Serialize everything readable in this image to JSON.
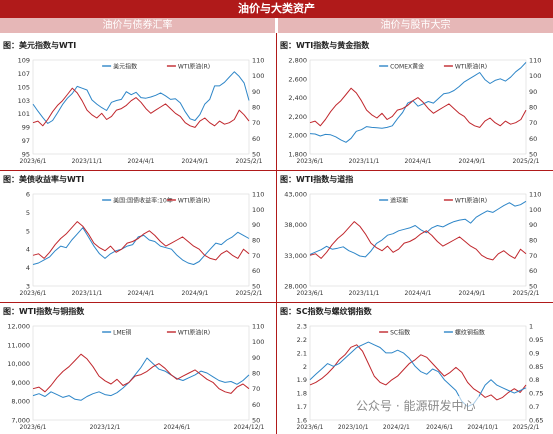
{
  "page": {
    "title": "油价与大类资产",
    "left_header": "油价与债券汇率",
    "right_header": "油价与股市大宗",
    "watermark": "公众号 · 能源研发中心"
  },
  "colors": {
    "blue": "#2e86c8",
    "red": "#c0272d",
    "header": "#b01a1a",
    "subheader": "#e6b7b7"
  },
  "chart_data": [
    {
      "type": "line",
      "title": "图：美元指数与WTI",
      "x_ticks": [
        "2023/6/1",
        "2023/11/1",
        "2024/4/1",
        "2024/9/1",
        "2025/2/1"
      ],
      "left_axis": {
        "ticks": [
          "95",
          "97",
          "99",
          "101",
          "103",
          "105",
          "107",
          "109"
        ],
        "range": [
          95,
          111
        ]
      },
      "right_axis": {
        "ticks": [
          "50",
          "60",
          "70",
          "80",
          "90",
          "100",
          "110"
        ],
        "range": [
          50,
          110
        ]
      },
      "series": [
        {
          "name": "美元指数",
          "axis": "left",
          "color": "#2e86c8",
          "values": [
            103.5,
            102.3,
            101.2,
            100.2,
            100.7,
            102.0,
            103.4,
            104.5,
            105.3,
            106.5,
            106.2,
            105.9,
            104.2,
            103.5,
            102.9,
            102.4,
            103.8,
            104.1,
            104.3,
            105.6,
            105.1,
            105.5,
            104.6,
            104.5,
            104.7,
            105.0,
            105.4,
            104.9,
            104.3,
            104.4,
            103.7,
            102.2,
            101.0,
            100.7,
            101.7,
            103.5,
            104.3,
            106.6,
            106.6,
            107.2,
            108.1,
            109.0,
            108.2,
            107.1,
            104.1
          ]
        },
        {
          "name": "WTI原油(R)",
          "axis": "right",
          "color": "#c0272d",
          "values": [
            70,
            71,
            68,
            72,
            77,
            81,
            84,
            88,
            92,
            89,
            84,
            78,
            75,
            73,
            76,
            72,
            74,
            78,
            79,
            81,
            84,
            86,
            83,
            79,
            76,
            78,
            80,
            82,
            79,
            76,
            74,
            70,
            68,
            67,
            71,
            73,
            70,
            68,
            71,
            69,
            70,
            72,
            78,
            75,
            71
          ]
        }
      ]
    },
    {
      "type": "line",
      "title": "图：WTI指数与黄金指数",
      "x_ticks": [
        "2023/6/1",
        "2023/11/1",
        "2024/4/1",
        "2024/9/1",
        "2025/2/1"
      ],
      "left_axis": {
        "ticks": [
          "1,800",
          "2,000",
          "2,200",
          "2,400",
          "2,600",
          "2,800"
        ],
        "range": [
          1700,
          2900
        ]
      },
      "right_axis": {
        "ticks": [
          "50",
          "60",
          "70",
          "80",
          "90",
          "100",
          "110"
        ],
        "range": [
          50,
          110
        ]
      },
      "series": [
        {
          "name": "COMEX黄金",
          "axis": "left",
          "color": "#2e86c8",
          "values": [
            1960,
            1955,
            1930,
            1950,
            1945,
            1920,
            1880,
            1850,
            1900,
            1990,
            2010,
            2050,
            2040,
            2035,
            2030,
            2040,
            2060,
            2150,
            2230,
            2350,
            2380,
            2310,
            2340,
            2370,
            2350,
            2410,
            2470,
            2480,
            2510,
            2560,
            2620,
            2660,
            2700,
            2740,
            2650,
            2600,
            2640,
            2660,
            2630,
            2680,
            2750,
            2800,
            2870
          ]
        },
        {
          "name": "WTI原油(R)",
          "axis": "right",
          "color": "#c0272d",
          "values": [
            70,
            71,
            68,
            72,
            77,
            81,
            84,
            88,
            92,
            89,
            84,
            78,
            75,
            73,
            76,
            72,
            74,
            78,
            79,
            81,
            84,
            86,
            83,
            79,
            76,
            78,
            80,
            82,
            79,
            76,
            74,
            70,
            68,
            67,
            71,
            73,
            70,
            68,
            71,
            69,
            70,
            72,
            78
          ]
        }
      ]
    },
    {
      "type": "line",
      "title": "图：美债收益率与WTI",
      "x_ticks": [
        "2023/6/1",
        "2023/11/1",
        "2024/4/1",
        "2024/9/1",
        "2025/2/1"
      ],
      "left_axis": {
        "ticks": [
          "3",
          "4",
          "4",
          "5",
          "5",
          "6"
        ],
        "range": [
          3,
          6
        ]
      },
      "right_axis": {
        "ticks": [
          "50",
          "60",
          "70",
          "80",
          "90",
          "100",
          "110"
        ],
        "range": [
          50,
          110
        ]
      },
      "series": [
        {
          "name": "美国:国债收益率:10年",
          "axis": "left",
          "color": "#2e86c8",
          "values": [
            3.7,
            3.75,
            3.85,
            3.95,
            4.15,
            4.3,
            4.25,
            4.5,
            4.7,
            4.9,
            4.6,
            4.3,
            4.05,
            3.9,
            4.05,
            4.15,
            4.2,
            4.3,
            4.35,
            4.6,
            4.65,
            4.5,
            4.45,
            4.3,
            4.25,
            4.2,
            4.0,
            3.85,
            3.75,
            3.7,
            3.8,
            4.0,
            4.2,
            4.4,
            4.35,
            4.5,
            4.6,
            4.75,
            4.65,
            4.55
          ]
        },
        {
          "name": "WTI原油(R)",
          "axis": "right",
          "color": "#c0272d",
          "values": [
            70,
            71,
            68,
            72,
            77,
            81,
            84,
            88,
            92,
            89,
            84,
            78,
            75,
            73,
            76,
            72,
            74,
            78,
            79,
            81,
            84,
            86,
            83,
            79,
            76,
            78,
            80,
            82,
            79,
            76,
            74,
            70,
            68,
            67,
            71,
            73,
            70,
            68,
            74,
            71
          ]
        }
      ]
    },
    {
      "type": "line",
      "title": "图：WTI指数与道指",
      "x_ticks": [
        "2023/6/1",
        "2023/11/1",
        "2024/4/1",
        "2024/9/1",
        "2025/2/1"
      ],
      "left_axis": {
        "ticks": [
          "28,000",
          "33,000",
          "38,000",
          "43,000"
        ],
        "range": [
          27000,
          46000
        ]
      },
      "right_axis": {
        "ticks": [
          "50",
          "60",
          "70",
          "80",
          "90",
          "100",
          "110"
        ],
        "range": [
          50,
          110
        ]
      },
      "series": [
        {
          "name": "道琼斯",
          "axis": "left",
          "color": "#2e86c8",
          "values": [
            33500,
            34000,
            34500,
            35200,
            34600,
            34800,
            35100,
            34300,
            33800,
            33200,
            33000,
            34200,
            35800,
            36500,
            37500,
            37800,
            38400,
            38700,
            39000,
            39500,
            38600,
            38000,
            39000,
            39500,
            39200,
            39800,
            40300,
            40600,
            40800,
            40000,
            41200,
            41900,
            42500,
            42200,
            42900,
            43600,
            44200,
            43500,
            43800,
            44500
          ]
        },
        {
          "name": "WTI原油(R)",
          "axis": "right",
          "color": "#c0272d",
          "values": [
            70,
            71,
            68,
            72,
            77,
            81,
            84,
            88,
            92,
            89,
            84,
            78,
            75,
            73,
            76,
            72,
            74,
            78,
            79,
            81,
            84,
            86,
            83,
            79,
            76,
            78,
            80,
            82,
            79,
            76,
            74,
            70,
            68,
            67,
            71,
            73,
            70,
            68,
            74,
            71
          ]
        }
      ]
    },
    {
      "type": "line",
      "title": "图：WTI指数与铜指数",
      "x_ticks": [
        "2023/6/1",
        "2023/12/1",
        "2024/6/1",
        "2024/12/1"
      ],
      "left_axis": {
        "ticks": [
          "7,000",
          "8,000",
          "9,000",
          "10,000",
          "11,000",
          "12,000"
        ],
        "range": [
          7000,
          12000
        ]
      },
      "right_axis": {
        "ticks": [
          "50",
          "60",
          "70",
          "80",
          "90",
          "100",
          "110"
        ],
        "range": [
          50,
          110
        ]
      },
      "series": [
        {
          "name": "LME铜",
          "axis": "left",
          "color": "#2e86c8",
          "values": [
            8300,
            8400,
            8250,
            8500,
            8350,
            8200,
            8300,
            8100,
            8050,
            8250,
            8400,
            8500,
            8350,
            8300,
            8450,
            8700,
            9000,
            9400,
            9800,
            10300,
            10000,
            9700,
            9600,
            9400,
            9200,
            9100,
            9250,
            9400,
            9600,
            9500,
            9300,
            9100,
            9000,
            9050,
            8900,
            9100,
            9400
          ]
        },
        {
          "name": "WTI原油(R)",
          "axis": "right",
          "color": "#c0272d",
          "values": [
            70,
            71,
            68,
            72,
            77,
            81,
            84,
            88,
            92,
            89,
            84,
            78,
            75,
            73,
            76,
            72,
            74,
            78,
            79,
            81,
            84,
            86,
            83,
            79,
            76,
            78,
            80,
            82,
            79,
            76,
            74,
            70,
            68,
            67,
            71,
            73,
            70
          ]
        }
      ]
    },
    {
      "type": "line",
      "title": "图：SC指数与螺纹钢指数",
      "x_ticks": [
        "2023/6/1",
        "2023/10/1",
        "2024/2/1",
        "2024/6/1",
        "2024/10/1",
        "2025/2/1"
      ],
      "left_axis": {
        "ticks": [
          "1.6",
          "1.7",
          "1.8",
          "1.9",
          "2",
          "2.1",
          "2.2",
          "2.3"
        ],
        "range": [
          1.6,
          2.35
        ]
      },
      "right_axis": {
        "ticks": [
          "0.65",
          "0.7",
          "0.75",
          "0.8",
          "0.85",
          "0.9",
          "0.95",
          "1"
        ],
        "range": [
          0.65,
          1.0
        ]
      },
      "series": [
        {
          "name": "SC指数",
          "axis": "left",
          "color": "#c0272d",
          "values": [
            1.88,
            1.9,
            1.93,
            1.97,
            2.02,
            2.08,
            2.12,
            2.18,
            2.2,
            2.15,
            2.05,
            1.95,
            1.9,
            1.88,
            1.92,
            1.95,
            2.0,
            2.05,
            2.08,
            2.12,
            2.1,
            2.05,
            2.0,
            1.95,
            1.98,
            2.02,
            1.98,
            1.9,
            1.85,
            1.82,
            1.78,
            1.8,
            1.76,
            1.78,
            1.82,
            1.85,
            1.82,
            1.88
          ]
        },
        {
          "name": "螺纹钢指数",
          "axis": "right",
          "color": "#2e86c8",
          "values": [
            0.8,
            0.82,
            0.84,
            0.86,
            0.85,
            0.86,
            0.88,
            0.9,
            0.92,
            0.93,
            0.94,
            0.93,
            0.92,
            0.9,
            0.9,
            0.91,
            0.9,
            0.88,
            0.85,
            0.83,
            0.82,
            0.84,
            0.83,
            0.8,
            0.78,
            0.76,
            0.72,
            0.7,
            0.71,
            0.74,
            0.78,
            0.8,
            0.78,
            0.77,
            0.76,
            0.75,
            0.76,
            0.77
          ]
        }
      ]
    }
  ]
}
